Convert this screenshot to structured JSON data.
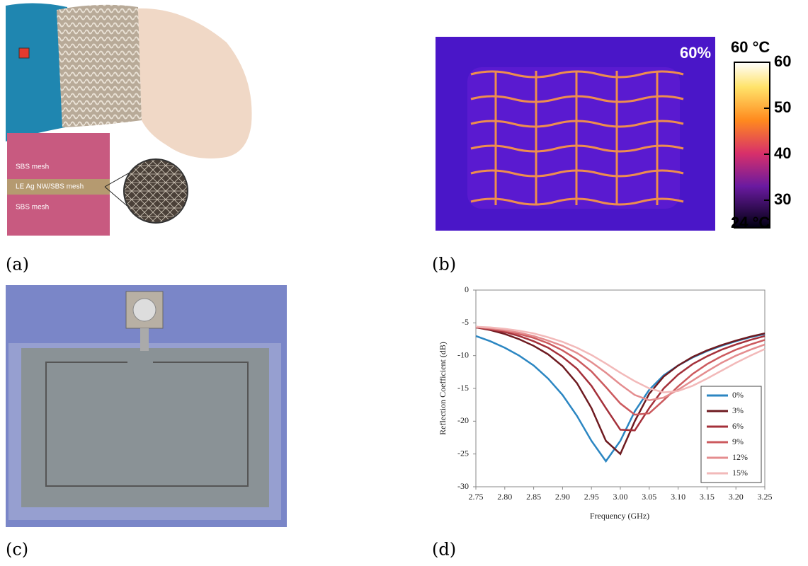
{
  "panels": {
    "a": {
      "label": "(a)",
      "layers": [
        "SBS mesh",
        "LE Ag NW/SBS mesh",
        "SBS mesh"
      ]
    },
    "b": {
      "label": "(b)",
      "strain": "60%",
      "scale_max": "60 °C",
      "scale_min": "24 °C",
      "scale_lim": [
        24,
        60
      ],
      "scale_ticks": [
        60,
        50,
        40,
        30
      ]
    },
    "c": {
      "label": "(c)"
    },
    "d": {
      "label": "(d)"
    }
  },
  "chart_data": {
    "type": "line",
    "x_label": "Frequency (GHz)",
    "y_label": "Reflection Coefficient  (dB)",
    "x": [
      2.75,
      2.775,
      2.8,
      2.825,
      2.85,
      2.875,
      2.9,
      2.925,
      2.95,
      2.975,
      3.0,
      3.025,
      3.05,
      3.075,
      3.1,
      3.125,
      3.15,
      3.175,
      3.2,
      3.225,
      3.25
    ],
    "series": [
      {
        "name": "0%",
        "color": "#2b86c2",
        "values": [
          -7,
          -7.8,
          -8.8,
          -10,
          -11.5,
          -13.5,
          -16,
          -19.2,
          -23,
          -26.1,
          -23,
          -18.5,
          -15.2,
          -13,
          -11.5,
          -10.3,
          -9.3,
          -8.5,
          -7.8,
          -7.2,
          -6.7
        ]
      },
      {
        "name": "3%",
        "color": "#6e1a20",
        "values": [
          -5.7,
          -6.1,
          -6.7,
          -7.5,
          -8.5,
          -9.8,
          -11.6,
          -14.2,
          -18,
          -23,
          -25,
          -20,
          -15.8,
          -13.2,
          -11.5,
          -10.2,
          -9.2,
          -8.4,
          -7.7,
          -7.1,
          -6.6
        ]
      },
      {
        "name": "6%",
        "color": "#a4303a",
        "values": [
          -5.7,
          -6,
          -6.4,
          -7,
          -7.8,
          -8.8,
          -10.2,
          -12,
          -14.6,
          -18,
          -21.3,
          -21.4,
          -18,
          -15,
          -12.9,
          -11.3,
          -10.1,
          -9.1,
          -8.3,
          -7.6,
          -7
        ]
      },
      {
        "name": "9%",
        "color": "#cc5a5e",
        "values": [
          -5.6,
          -5.9,
          -6.2,
          -6.7,
          -7.3,
          -8.1,
          -9.2,
          -10.6,
          -12.4,
          -14.8,
          -17.3,
          -19,
          -18.8,
          -16.8,
          -14.7,
          -12.8,
          -11.3,
          -10.1,
          -9.1,
          -8.3,
          -7.6
        ]
      },
      {
        "name": "12%",
        "color": "#e48d8f",
        "values": [
          -5.6,
          -5.8,
          -6.1,
          -6.5,
          -7,
          -7.7,
          -8.5,
          -9.6,
          -11,
          -12.6,
          -14.4,
          -16,
          -16.8,
          -16.4,
          -15.2,
          -13.8,
          -12.4,
          -11.1,
          -10,
          -9.1,
          -8.3
        ]
      },
      {
        "name": "15%",
        "color": "#f2b9b9",
        "values": [
          -5.6,
          -5.7,
          -5.9,
          -6.2,
          -6.6,
          -7.2,
          -7.9,
          -8.8,
          -9.9,
          -11.2,
          -12.6,
          -13.9,
          -15,
          -15.6,
          -15.4,
          -14.6,
          -13.5,
          -12.3,
          -11.1,
          -10,
          -9
        ]
      }
    ],
    "xlim": [
      2.75,
      3.25
    ],
    "ylim": [
      -30,
      0
    ],
    "xticks": [
      2.75,
      {
        "value": 2.8,
        "label": "2.80"
      },
      2.85,
      {
        "value": 2.9,
        "label": "2.90"
      },
      2.95,
      {
        "value": 3.0,
        "label": "3.00"
      },
      3.05,
      {
        "value": 3.1,
        "label": "3.10"
      },
      3.15,
      {
        "value": 3.2,
        "label": "3.20"
      },
      3.25
    ],
    "yticks": [
      0,
      -5,
      -10,
      -15,
      -20,
      -25,
      -30
    ],
    "legend": "lower right"
  }
}
